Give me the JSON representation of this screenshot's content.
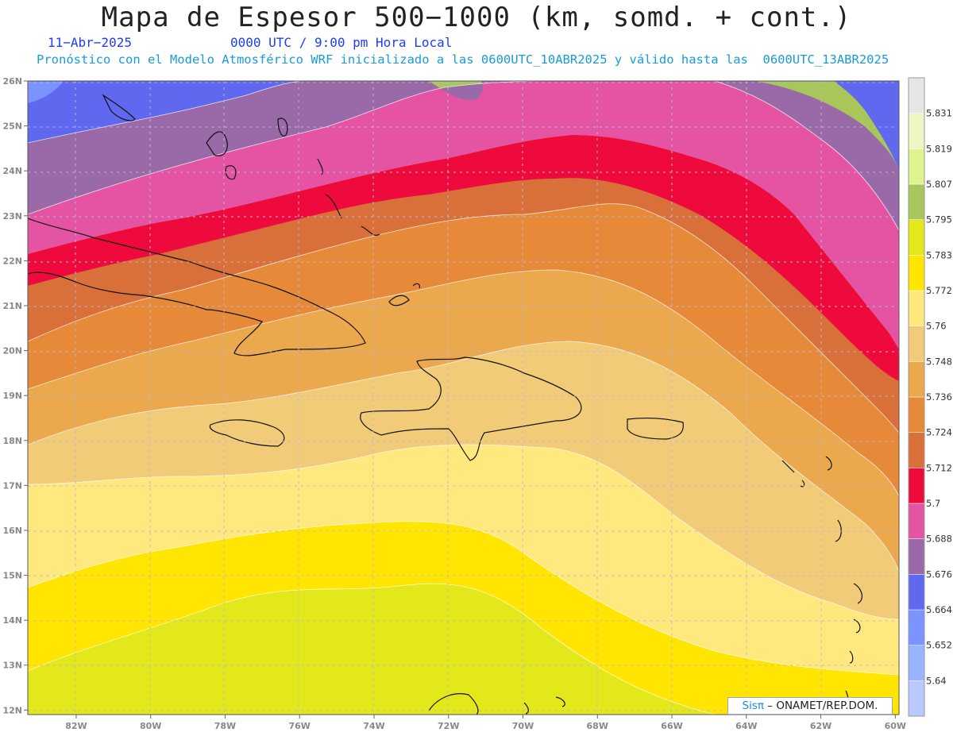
{
  "title": "Mapa de Espesor 500−1000 (km, somd. + cont.)",
  "date": "11−Abr−2025",
  "time": "0000 UTC / 9:00 pm Hora Local",
  "subtitle": "Pronóstico con el Modelo Atmosférico WRF inicializado a las 0600UTC_10ABR2025 y válido hasta las  0600UTC_13ABR2025",
  "credit": {
    "brand": "Sisπ",
    "text": " –  ONAMET/REP.DOM."
  },
  "map": {
    "lon_range": [
      -83.3,
      -59.9
    ],
    "lat_range": [
      11.9,
      26.0
    ],
    "lon_ticks": [
      "82W",
      "80W",
      "78W",
      "76W",
      "74W",
      "72W",
      "70W",
      "68W",
      "66W",
      "64W",
      "62W",
      "60W"
    ],
    "lon_tick_values": [
      -82,
      -80,
      -78,
      -76,
      -74,
      -72,
      -70,
      -68,
      -66,
      -64,
      -62,
      -60
    ],
    "lat_ticks": [
      "12N",
      "13N",
      "14N",
      "15N",
      "16N",
      "17N",
      "18N",
      "19N",
      "20N",
      "21N",
      "22N",
      "23N",
      "24N",
      "25N",
      "26N"
    ],
    "lat_tick_values": [
      12,
      13,
      14,
      15,
      16,
      17,
      18,
      19,
      20,
      21,
      22,
      23,
      24,
      25,
      26
    ],
    "grid": true
  },
  "colorbar": {
    "labels": [
      "5.64",
      "5.652",
      "5.664",
      "5.676",
      "5.688",
      "5.7",
      "5.712",
      "5.724",
      "5.736",
      "5.748",
      "5.76",
      "5.772",
      "5.783",
      "5.795",
      "5.807",
      "5.819",
      "5.831"
    ],
    "colors": [
      "#b9c9ff",
      "#98b4ff",
      "#7c94ff",
      "#6068f0",
      "#9a6aa8",
      "#e554a3",
      "#ee0a3d",
      "#d9703a",
      "#e68a3a",
      "#eba84d",
      "#f2cb78",
      "#ffe97e",
      "#ffe500",
      "#e3e81a",
      "#a8c65a",
      "#dff38f",
      "#eef6c4",
      "#e6e6e6"
    ]
  },
  "legend_colors": {
    "blue": "#6068f0",
    "purple": "#9a6aa8",
    "pink": "#e554a3",
    "red": "#ee0a3d",
    "burnt": "#d9703a",
    "orange": "#e68a3a",
    "lorange": "#eba84d",
    "tan": "#f2cb78",
    "lyellow": "#ffe97e",
    "yellow": "#ffe500",
    "lime": "#e3e81a",
    "green": "#a8c65a"
  }
}
